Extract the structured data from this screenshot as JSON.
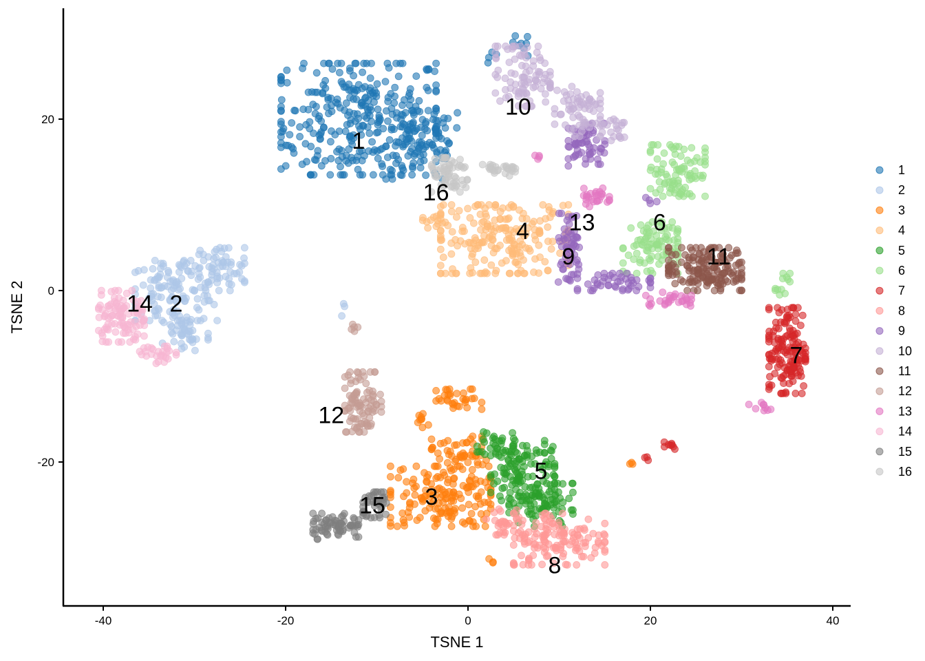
{
  "chart_data": {
    "type": "scatter",
    "title": "",
    "xlabel": "TSNE 1",
    "ylabel": "TSNE 2",
    "xlim": [
      -44,
      42
    ],
    "ylim": [
      -36.5,
      33
    ],
    "xticks": [
      -40,
      -20,
      0,
      20,
      40
    ],
    "yticks": [
      -20,
      0,
      20
    ],
    "xtick_labels": [
      "-40",
      "-20",
      "0",
      "20",
      "40"
    ],
    "ytick_labels": [
      "-20",
      "0",
      "20"
    ],
    "grid": false,
    "legend_position": "right",
    "legend_title": "",
    "point_alpha": 0.6,
    "series": [
      {
        "name": "1",
        "color": "#1f77b4",
        "label_pos": [
          -12,
          17.5
        ],
        "n": 420,
        "blobs": [
          [
            -12,
            20,
            8.5,
            6.5
          ],
          [
            -5,
            17,
            4,
            4
          ],
          [
            5.5,
            28.5,
            1.2,
            1.2
          ],
          [
            3,
            27,
            0.8,
            0.8
          ]
        ]
      },
      {
        "name": "2",
        "color": "#aec7e8",
        "label_pos": [
          -32,
          -1.5
        ],
        "n": 230,
        "blobs": [
          [
            -32,
            0,
            4.5,
            3.5
          ],
          [
            -27,
            2.5,
            2.5,
            2.5
          ],
          [
            -31,
            -5,
            2.5,
            2
          ],
          [
            -13.5,
            -2,
            0.4,
            1
          ]
        ]
      },
      {
        "name": "3",
        "color": "#ff7f0e",
        "label_pos": [
          -4,
          -24
        ],
        "n": 260,
        "blobs": [
          [
            -3,
            -24,
            5.5,
            3.5
          ],
          [
            -1,
            -19,
            3,
            2
          ],
          [
            -1,
            -13,
            2.5,
            1.5
          ],
          [
            -5,
            -15,
            1,
            1
          ],
          [
            18,
            -20,
            0.4,
            0.4
          ],
          [
            2.5,
            -31.5,
            0.3,
            0.3
          ]
        ]
      },
      {
        "name": "4",
        "color": "#ffbb78",
        "label_pos": [
          6,
          7
        ],
        "n": 230,
        "blobs": [
          [
            4,
            6,
            7,
            4
          ],
          [
            -4,
            8,
            1.5,
            1
          ]
        ]
      },
      {
        "name": "5",
        "color": "#2ca02c",
        "label_pos": [
          8,
          -21
        ],
        "n": 230,
        "blobs": [
          [
            6,
            -21,
            3.5,
            3.5
          ],
          [
            8,
            -25,
            3.5,
            2.5
          ],
          [
            3,
            -18,
            2,
            1.5
          ]
        ]
      },
      {
        "name": "6",
        "color": "#98df8a",
        "label_pos": [
          21,
          8
        ],
        "n": 190,
        "blobs": [
          [
            23,
            14,
            3,
            3
          ],
          [
            20,
            5,
            3,
            3
          ],
          [
            34.5,
            0.5,
            0.8,
            1.5
          ]
        ]
      },
      {
        "name": "7",
        "color": "#d62728",
        "label_pos": [
          36,
          -7.5
        ],
        "n": 160,
        "blobs": [
          [
            35,
            -7,
            2,
            5
          ],
          [
            22,
            -18,
            1,
            0.5
          ],
          [
            19.5,
            -19.5,
            0.3,
            0.3
          ]
        ]
      },
      {
        "name": "8",
        "color": "#ff9896",
        "label_pos": [
          9.5,
          -32
        ],
        "n": 170,
        "blobs": [
          [
            10,
            -29,
            5,
            3
          ],
          [
            4,
            -27,
            2,
            1.5
          ]
        ]
      },
      {
        "name": "9",
        "color": "#9467bd",
        "label_pos": [
          11,
          4
        ],
        "n": 170,
        "blobs": [
          [
            11,
            5,
            1.2,
            4
          ],
          [
            16,
            1,
            4,
            1
          ],
          [
            13,
            17,
            2,
            2.5
          ],
          [
            20,
            10.5,
            0.7,
            0.5
          ]
        ]
      },
      {
        "name": "10",
        "color": "#c5b0d5",
        "label_pos": [
          5.5,
          21.5
        ],
        "n": 180,
        "blobs": [
          [
            6,
            25,
            3,
            3.5
          ],
          [
            12,
            21,
            2.5,
            3
          ],
          [
            16,
            19,
            1.5,
            1.5
          ]
        ]
      },
      {
        "name": "11",
        "color": "#8c564b",
        "label_pos": [
          27.5,
          4
        ],
        "n": 170,
        "blobs": [
          [
            26,
            2.5,
            4,
            2.5
          ]
        ]
      },
      {
        "name": "12",
        "color": "#c49c94",
        "label_pos": [
          -15,
          -14.5
        ],
        "n": 100,
        "blobs": [
          [
            -11.5,
            -13,
            2,
            3.5
          ],
          [
            -12.5,
            -4.5,
            0.5,
            0.7
          ]
        ]
      },
      {
        "name": "13",
        "color": "#e377c2",
        "label_pos": [
          12.5,
          8
        ],
        "n": 70,
        "blobs": [
          [
            14,
            11,
            1.5,
            1.2
          ],
          [
            7,
            15.5,
            0.8,
            0.3
          ],
          [
            32,
            -13.5,
            1.2,
            0.5
          ],
          [
            22,
            -1,
            2.5,
            0.8
          ]
        ]
      },
      {
        "name": "14",
        "color": "#f7b6d2",
        "label_pos": [
          -36,
          -1.5
        ],
        "n": 130,
        "blobs": [
          [
            -38,
            -3,
            2.5,
            3
          ],
          [
            -34,
            -7.5,
            2,
            1
          ]
        ]
      },
      {
        "name": "15",
        "color": "#7f7f7f",
        "label_pos": [
          -10.5,
          -25
        ],
        "n": 110,
        "blobs": [
          [
            -14.5,
            -27.5,
            2.5,
            1.5
          ],
          [
            -10,
            -25,
            1.5,
            1.5
          ]
        ]
      },
      {
        "name": "16",
        "color": "#c7c7c7",
        "label_pos": [
          -3.5,
          11.5
        ],
        "n": 90,
        "blobs": [
          [
            -2,
            13.5,
            2,
            2
          ],
          [
            3.5,
            14,
            2.5,
            0.7
          ]
        ]
      }
    ]
  }
}
